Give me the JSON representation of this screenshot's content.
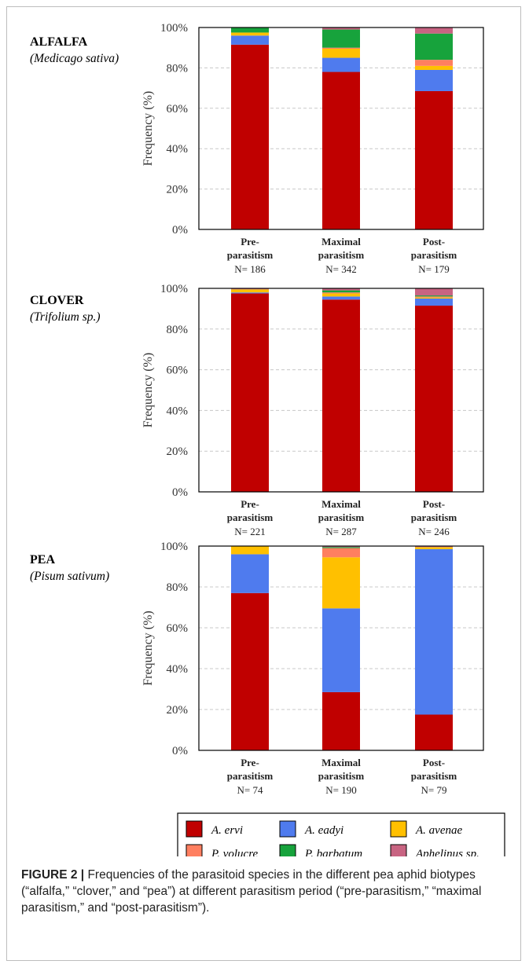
{
  "chart_data": [
    {
      "type": "bar",
      "stacked": true,
      "title": "ALFALFA",
      "subtitle": "(Medicago sativa)",
      "ylabel": "Frequency (%)",
      "ylim": [
        0,
        100
      ],
      "yticks": [
        "0%",
        "20%",
        "40%",
        "60%",
        "80%",
        "100%"
      ],
      "grid": "horizontal-dashed",
      "categories": [
        {
          "l1": "Pre-",
          "l2": "parasitism",
          "n": "N= 186"
        },
        {
          "l1": "Maximal",
          "l2": "parasitism",
          "n": "N= 342"
        },
        {
          "l1": "Post-",
          "l2": "parasitism",
          "n": "N= 179"
        }
      ],
      "series": [
        {
          "name": "A. ervi",
          "values": [
            91.5,
            78,
            68.5
          ]
        },
        {
          "name": "A. eadyi",
          "values": [
            4.5,
            7,
            10.5
          ]
        },
        {
          "name": "A. avenae",
          "values": [
            1.5,
            4.5,
            2
          ]
        },
        {
          "name": "P. volucre",
          "values": [
            0,
            0.5,
            3
          ]
        },
        {
          "name": "P. barbatum",
          "values": [
            2.5,
            9,
            13
          ]
        },
        {
          "name": "Aphelinus sp.",
          "values": [
            0,
            1,
            3
          ]
        }
      ]
    },
    {
      "type": "bar",
      "stacked": true,
      "title": "CLOVER",
      "subtitle": "(Trifolium sp.)",
      "ylabel": "Frequency (%)",
      "ylim": [
        0,
        100
      ],
      "yticks": [
        "0%",
        "20%",
        "40%",
        "60%",
        "80%",
        "100%"
      ],
      "grid": "horizontal-dashed",
      "categories": [
        {
          "l1": "Pre-",
          "l2": "parasitism",
          "n": "N= 221"
        },
        {
          "l1": "Maximal",
          "l2": "parasitism",
          "n": "N= 287"
        },
        {
          "l1": "Post-",
          "l2": "parasitism",
          "n": "N= 246"
        }
      ],
      "series": [
        {
          "name": "A. ervi",
          "values": [
            97.5,
            94.5,
            91.5
          ]
        },
        {
          "name": "A. eadyi",
          "values": [
            0.5,
            1.5,
            3.5
          ]
        },
        {
          "name": "A. avenae",
          "values": [
            1.5,
            1.5,
            0.5
          ]
        },
        {
          "name": "P. volucre",
          "values": [
            0,
            0.5,
            0.5
          ]
        },
        {
          "name": "P. barbatum",
          "values": [
            0,
            1,
            0.5
          ]
        },
        {
          "name": "Aphelinus sp.",
          "values": [
            0.5,
            1,
            3.5
          ]
        }
      ]
    },
    {
      "type": "bar",
      "stacked": true,
      "title": "PEA",
      "subtitle": "(Pisum sativum)",
      "ylabel": "Frequency (%)",
      "ylim": [
        0,
        100
      ],
      "yticks": [
        "0%",
        "20%",
        "40%",
        "60%",
        "80%",
        "100%"
      ],
      "grid": "horizontal-dashed",
      "categories": [
        {
          "l1": "Pre-",
          "l2": "parasitism",
          "n": "N= 74"
        },
        {
          "l1": "Maximal",
          "l2": "parasitism",
          "n": "N= 190"
        },
        {
          "l1": "Post-",
          "l2": "parasitism",
          "n": "N= 79"
        }
      ],
      "series": [
        {
          "name": "A. ervi",
          "values": [
            77,
            28.5,
            17.5
          ]
        },
        {
          "name": "A. eadyi",
          "values": [
            19,
            41,
            81
          ]
        },
        {
          "name": "A. avenae",
          "values": [
            4,
            25,
            1
          ]
        },
        {
          "name": "P. volucre",
          "values": [
            0,
            4.5,
            0
          ]
        },
        {
          "name": "P. barbatum",
          "values": [
            0,
            0.5,
            0
          ]
        },
        {
          "name": "Aphelinus sp.",
          "values": [
            0,
            0.5,
            0.5
          ]
        }
      ]
    }
  ],
  "colors": {
    "A. ervi": "#c00000",
    "A. eadyi": "#4f7bee",
    "A. avenae": "#ffc000",
    "P. volucre": "#ff7f60",
    "P. barbatum": "#17a33c",
    "Aphelinus sp.": "#c86482"
  },
  "legend": {
    "items": [
      "A. ervi",
      "A. eadyi",
      "A. avenae",
      "P. volucre",
      "P. barbatum",
      "Aphelinus sp."
    ]
  },
  "caption": {
    "label": "FIGURE 2 |",
    "text": " Frequencies of the parasitoid species in the different pea aphid biotypes (“alfalfa,” “clover,” and “pea”) at different parasitism period (“pre-parasitism,” “maximal parasitism,” and “post-parasitism”)."
  }
}
